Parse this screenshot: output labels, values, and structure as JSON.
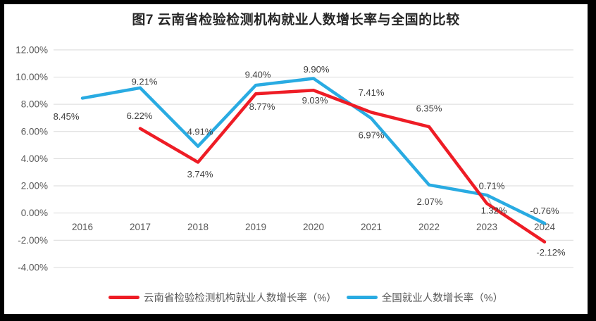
{
  "title": "图7  云南省检验检测机构就业人数增长率与全国的比较",
  "colors": {
    "yunnan_line": "#EE1C25",
    "national_line": "#29ABE2",
    "gridline": "#D9D9D9",
    "axis_text": "#595959",
    "data_label_text": "#404040",
    "leader_line": "#BFBFBF",
    "frame": "#000000",
    "background": "#FFFFFF"
  },
  "chart_data": {
    "type": "line",
    "title": "图7  云南省检验检测机构就业人数增长率与全国的比较",
    "categories": [
      "2016",
      "2017",
      "2018",
      "2019",
      "2020",
      "2021",
      "2022",
      "2023",
      "2024"
    ],
    "series": [
      {
        "name": "云南省检验检测机构就业人数增长率（%）",
        "color": "#EE1C25",
        "values": [
          null,
          6.22,
          3.74,
          8.77,
          9.03,
          7.41,
          6.35,
          0.71,
          -2.12
        ],
        "point_labels": [
          null,
          "6.22%",
          "3.74%",
          "8.77%",
          "9.03%",
          "7.41%",
          "6.35%",
          "0.71%",
          "-2.12%"
        ],
        "label_offsets": [
          null,
          [
            -1,
            -18
          ],
          [
            3,
            17
          ],
          [
            9,
            18
          ],
          [
            2,
            14
          ],
          [
            0,
            -28
          ],
          [
            0,
            -26
          ],
          [
            7,
            -25
          ],
          [
            9,
            15
          ]
        ]
      },
      {
        "name": "全国就业人数增长率（%）",
        "color": "#29ABE2",
        "values": [
          8.45,
          9.21,
          4.91,
          9.4,
          9.9,
          6.97,
          2.07,
          1.32,
          -0.76
        ],
        "point_labels": [
          "8.45%",
          "9.21%",
          "4.91%",
          "9.40%",
          "9.90%",
          "6.97%",
          "2.07%",
          "1.32%",
          "-0.76%"
        ],
        "label_offsets": [
          [
            -23,
            26
          ],
          [
            6,
            -9
          ],
          [
            3,
            -21
          ],
          [
            3,
            -15
          ],
          [
            4,
            -13
          ],
          [
            0,
            24
          ],
          [
            1,
            24
          ],
          [
            10,
            22
          ],
          [
            0,
            -18
          ]
        ]
      }
    ],
    "y_axis": {
      "min": -4,
      "max": 12,
      "step": 2,
      "tick_labels": [
        "12.00%",
        "10.00%",
        "8.00%",
        "6.00%",
        "4.00%",
        "2.00%",
        "0.00%",
        "-2.00%",
        "-4.00%"
      ]
    },
    "grid": true,
    "legend_position": "bottom",
    "annotations": {
      "leader_line": {
        "series_index": 1,
        "point_index": 7,
        "dx": 7,
        "dy": 15
      }
    }
  }
}
